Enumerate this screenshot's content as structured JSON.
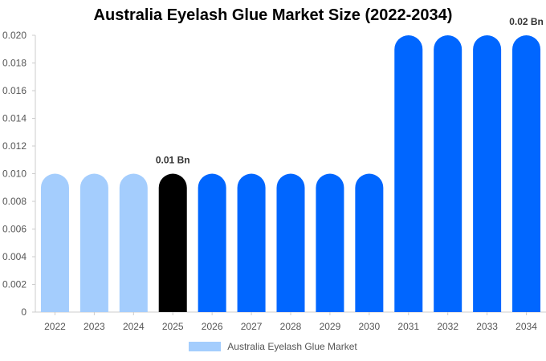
{
  "chart_data": {
    "type": "bar",
    "title": "Australia Eyelash Glue Market Size (2022-2034)",
    "categories": [
      "2022",
      "2023",
      "2024",
      "2025",
      "2026",
      "2027",
      "2028",
      "2029",
      "2030",
      "2031",
      "2032",
      "2033",
      "2034"
    ],
    "series": [
      {
        "name": "Australia Eyelash Glue Market",
        "values": [
          0.01,
          0.01,
          0.01,
          0.01,
          0.01,
          0.01,
          0.01,
          0.01,
          0.01,
          0.02,
          0.02,
          0.02,
          0.02
        ]
      }
    ],
    "bar_colors": [
      "#a4cdfd",
      "#a4cdfd",
      "#a4cdfd",
      "#000000",
      "#0066ff",
      "#0066ff",
      "#0066ff",
      "#0066ff",
      "#0066ff",
      "#0066ff",
      "#0066ff",
      "#0066ff",
      "#0066ff"
    ],
    "ylim": [
      0,
      0.02
    ],
    "yticks": [
      "0",
      "0.002",
      "0.004",
      "0.006",
      "0.008",
      "0.010",
      "0.012",
      "0.014",
      "0.016",
      "0.018",
      "0.020"
    ],
    "data_labels": [
      {
        "category": "2025",
        "text": "0.01 Bn"
      },
      {
        "category": "2034",
        "text": "0.02 Bn"
      }
    ],
    "legend_color": "#a4cdfd",
    "legend_placement": "bottom",
    "grid": false
  }
}
